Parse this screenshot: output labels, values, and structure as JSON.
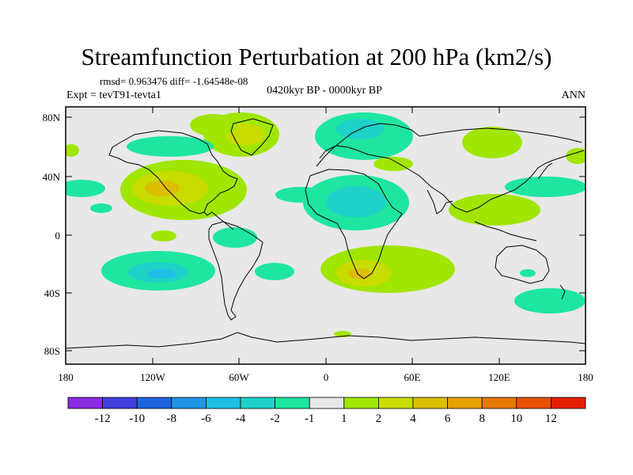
{
  "title": "Streamfunction Perturbation at 200 hPa (km2/s)",
  "stats": "rmsd= 0.963476 diff= -1.64548e-08",
  "experiment": "Expt = tevT91-tevta1",
  "period": "0420kyr BP - 0000kyr BP",
  "season": "ANN",
  "lat_labels": [
    "80N",
    "40N",
    "0",
    "40S",
    "80S"
  ],
  "lon_labels": [
    "180",
    "120W",
    "60W",
    "0",
    "60E",
    "120E",
    "180"
  ],
  "colorbar": {
    "colors": [
      "#8a2be2",
      "#3f3fdc",
      "#1e64dc",
      "#1e96e6",
      "#1ebee6",
      "#1ed2c8",
      "#1ee6a0",
      "#e8e8e8",
      "#a0e600",
      "#c8dc00",
      "#dcbe00",
      "#e6a000",
      "#e67800",
      "#e65000",
      "#e61e00"
    ],
    "labels": [
      "-12",
      "-10",
      "-8",
      "-6",
      "-4",
      "-2",
      "-1",
      "1",
      "2",
      "4",
      "6",
      "8",
      "10",
      "12"
    ]
  },
  "colors": {
    "background": "#e8e8e8",
    "green": "#1ee6a0",
    "teal": "#1ed2c8",
    "cyan": "#1ebee6",
    "lime": "#a0e600",
    "yellowgreen": "#c8dc00",
    "gold": "#dcbe00"
  }
}
